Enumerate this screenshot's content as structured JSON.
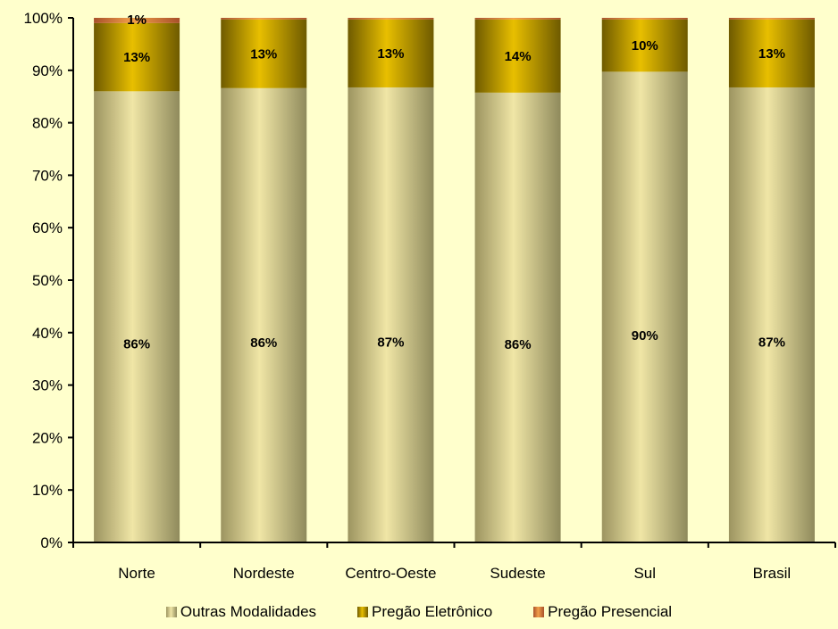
{
  "chart_data": {
    "type": "bar",
    "stacked": true,
    "categories": [
      "Norte",
      "Nordeste",
      "Centro-Oeste",
      "Sudeste",
      "Sul",
      "Brasil"
    ],
    "series": [
      {
        "name": "Outras Modalidades",
        "values": [
          86,
          86,
          87,
          86,
          90,
          87
        ],
        "labels": [
          "86%",
          "86%",
          "87%",
          "86%",
          "90%",
          "87%"
        ],
        "colors": [
          "#9c9460",
          "#f0e6a6",
          "#8f8a5c"
        ]
      },
      {
        "name": "Pregão Eletrônico",
        "values": [
          13,
          13,
          13,
          14,
          10,
          13
        ],
        "labels": [
          "13%",
          "13%",
          "13%",
          "14%",
          "10%",
          "13%"
        ],
        "colors": [
          "#6e5a00",
          "#e8bf00",
          "#6e5a00"
        ]
      },
      {
        "name": "Pregão Presencial",
        "values": [
          1,
          0.3,
          0.3,
          0.3,
          0.3,
          0.3
        ],
        "labels": [
          "1%",
          "",
          "",
          "",
          "",
          ""
        ],
        "colors": [
          "#a8502a",
          "#f2a04a",
          "#a8502a"
        ]
      }
    ],
    "ylim": [
      0,
      100
    ],
    "yticks": [
      "0%",
      "10%",
      "20%",
      "30%",
      "40%",
      "50%",
      "60%",
      "70%",
      "80%",
      "90%",
      "100%"
    ],
    "grid": false,
    "legend_position": "bottom",
    "background": "#ffffcc"
  }
}
